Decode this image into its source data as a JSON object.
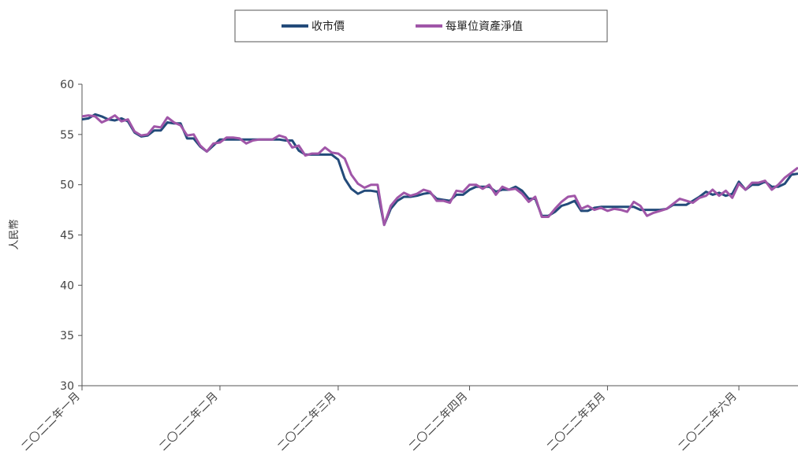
{
  "chart_data": {
    "type": "line",
    "title": "",
    "xlabel": "",
    "ylabel": "人民幣",
    "ylim": [
      30,
      60
    ],
    "yticks": [
      30,
      35,
      40,
      45,
      50,
      55,
      60
    ],
    "xtick_labels": [
      "二〇二二年一月",
      "二〇二二年二月",
      "二〇二二年三月",
      "二〇二二年四月",
      "二〇二二年五月",
      "二〇二二年六月"
    ],
    "legend_position": "top-center",
    "grid": false,
    "series": [
      {
        "name": "收市價",
        "color": "#234B7A",
        "values": [
          56.5,
          56.6,
          57.0,
          56.8,
          56.5,
          56.4,
          56.6,
          56.3,
          55.2,
          54.8,
          54.9,
          55.4,
          55.4,
          56.2,
          56.1,
          56.1,
          54.6,
          54.6,
          53.8,
          53.3,
          53.9,
          54.5,
          54.5,
          54.5,
          54.5,
          54.5,
          54.5,
          54.5,
          54.5,
          54.5,
          54.5,
          54.4,
          54.4,
          53.4,
          53.0,
          53.0,
          53.0,
          53.0,
          53.0,
          52.5,
          50.6,
          49.6,
          49.1,
          49.4,
          49.4,
          49.3,
          46.0,
          47.6,
          48.4,
          48.8,
          48.8,
          48.9,
          49.1,
          49.2,
          48.6,
          48.5,
          48.4,
          49.0,
          49.0,
          49.5,
          49.8,
          49.8,
          49.8,
          49.3,
          49.5,
          49.5,
          49.8,
          49.4,
          48.6,
          48.6,
          46.9,
          46.9,
          47.3,
          47.9,
          48.1,
          48.4,
          47.4,
          47.4,
          47.7,
          47.8,
          47.8,
          47.8,
          47.8,
          47.8,
          47.8,
          47.5,
          47.5,
          47.5,
          47.5,
          47.6,
          48.0,
          48.0,
          48.0,
          48.4,
          48.8,
          49.3,
          49.0,
          49.2,
          48.9,
          49.1,
          50.3,
          49.5,
          50.0,
          50.0,
          50.3,
          49.8,
          49.8,
          50.1,
          51.0,
          51.1
        ]
      },
      {
        "name": "每單位資產淨值",
        "color": "#A056A8",
        "values": [
          56.8,
          56.9,
          56.8,
          56.2,
          56.5,
          56.9,
          56.3,
          56.5,
          55.3,
          54.9,
          55.0,
          55.8,
          55.7,
          56.7,
          56.2,
          55.9,
          54.9,
          55.0,
          53.9,
          53.3,
          54.1,
          54.2,
          54.7,
          54.7,
          54.6,
          54.1,
          54.4,
          54.5,
          54.5,
          54.5,
          54.9,
          54.7,
          53.7,
          53.9,
          52.9,
          53.1,
          53.1,
          53.7,
          53.2,
          53.1,
          52.6,
          51.0,
          50.1,
          49.7,
          50.0,
          50.0,
          46.0,
          47.9,
          48.7,
          49.2,
          48.9,
          49.1,
          49.5,
          49.3,
          48.4,
          48.4,
          48.2,
          49.4,
          49.3,
          50.0,
          50.0,
          49.6,
          50.0,
          49.0,
          49.8,
          49.5,
          49.6,
          49.1,
          48.3,
          48.8,
          46.8,
          46.8,
          47.6,
          48.3,
          48.8,
          48.9,
          47.6,
          47.9,
          47.5,
          47.7,
          47.4,
          47.6,
          47.5,
          47.3,
          48.3,
          47.9,
          46.9,
          47.2,
          47.4,
          47.6,
          48.1,
          48.6,
          48.4,
          48.2,
          48.7,
          48.9,
          49.5,
          48.9,
          49.4,
          48.7,
          50.1,
          49.5,
          50.2,
          50.2,
          50.4,
          49.5,
          50.0,
          50.7,
          51.2,
          51.7
        ]
      }
    ]
  }
}
